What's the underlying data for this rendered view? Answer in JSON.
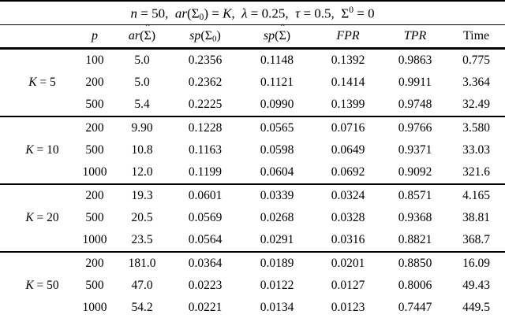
{
  "page": {
    "background_color": "#ffffff",
    "text_color": "#000000",
    "rule_color": "#000000"
  },
  "table": {
    "title_segments": [
      {
        "t": "n",
        "i": true
      },
      {
        "t": " = 50,  "
      },
      {
        "t": "ar",
        "i": true
      },
      {
        "t": "(Σ"
      },
      {
        "t": "0",
        "sub": true
      },
      {
        "t": ") = "
      },
      {
        "t": "K",
        "i": true
      },
      {
        "t": ",  "
      },
      {
        "t": "λ",
        "i": true
      },
      {
        "t": " = 0.25,  "
      },
      {
        "t": "τ",
        "i": true
      },
      {
        "t": " = 0.5,  Σ"
      },
      {
        "t": "0",
        "sup": true
      },
      {
        "t": " = 0"
      }
    ],
    "columns": [
      [
        {
          "t": "p",
          "i": true
        }
      ],
      [
        {
          "t": "ar",
          "i": true
        },
        {
          "t": "("
        },
        {
          "t": "Σ",
          "hat": true
        },
        {
          "t": ")"
        }
      ],
      [
        {
          "t": "sp",
          "i": true
        },
        {
          "t": "(Σ"
        },
        {
          "t": "0",
          "sub": true
        },
        {
          "t": ")"
        }
      ],
      [
        {
          "t": "sp",
          "i": true
        },
        {
          "t": "("
        },
        {
          "t": "Σ",
          "hat": true
        },
        {
          "t": ")"
        }
      ],
      [
        {
          "t": "FPR",
          "i": true
        }
      ],
      [
        {
          "t": "TPR",
          "i": true
        }
      ],
      [
        {
          "t": "Time"
        }
      ]
    ],
    "groups": [
      {
        "label_segments": [
          {
            "t": "K",
            "i": true
          },
          {
            "t": " = 5"
          }
        ],
        "rows": [
          [
            "100",
            "5.0",
            "0.2356",
            "0.1148",
            "0.1392",
            "0.9863",
            "0.775"
          ],
          [
            "200",
            "5.0",
            "0.2362",
            "0.1121",
            "0.1414",
            "0.9911",
            "3.364"
          ],
          [
            "500",
            "5.4",
            "0.2225",
            "0.0990",
            "0.1399",
            "0.9748",
            "32.49"
          ]
        ]
      },
      {
        "label_segments": [
          {
            "t": "K",
            "i": true
          },
          {
            "t": " = 10"
          }
        ],
        "rows": [
          [
            "200",
            "9.90",
            "0.1228",
            "0.0565",
            "0.0716",
            "0.9766",
            "3.580"
          ],
          [
            "500",
            "10.8",
            "0.1163",
            "0.0598",
            "0.0649",
            "0.9371",
            "33.03"
          ],
          [
            "1000",
            "12.0",
            "0.1199",
            "0.0604",
            "0.0692",
            "0.9092",
            "321.6"
          ]
        ]
      },
      {
        "label_segments": [
          {
            "t": "K",
            "i": true
          },
          {
            "t": " = 20"
          }
        ],
        "rows": [
          [
            "200",
            "19.3",
            "0.0601",
            "0.0339",
            "0.0324",
            "0.8571",
            "4.165"
          ],
          [
            "500",
            "20.5",
            "0.0569",
            "0.0268",
            "0.0328",
            "0.9368",
            "38.81"
          ],
          [
            "1000",
            "23.5",
            "0.0564",
            "0.0291",
            "0.0316",
            "0.8821",
            "368.7"
          ]
        ]
      },
      {
        "label_segments": [
          {
            "t": "K",
            "i": true
          },
          {
            "t": " = 50"
          }
        ],
        "rows": [
          [
            "200",
            "181.0",
            "0.0364",
            "0.0189",
            "0.0201",
            "0.8850",
            "16.09"
          ],
          [
            "500",
            "47.0",
            "0.0223",
            "0.0122",
            "0.0127",
            "0.8006",
            "49.43"
          ],
          [
            "1000",
            "54.2",
            "0.0221",
            "0.0134",
            "0.0123",
            "0.7447",
            "449.5"
          ]
        ]
      }
    ]
  }
}
